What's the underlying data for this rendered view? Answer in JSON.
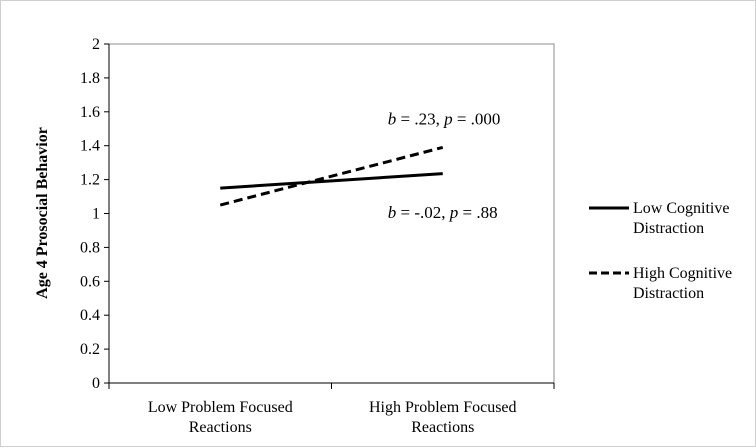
{
  "chart_data": {
    "type": "line",
    "title": "",
    "xlabel": "",
    "ylabel": "Age 4 Prosocial Behavior",
    "ylim": [
      0,
      2
    ],
    "yticks": [
      "0",
      "0.2",
      "0.4",
      "0.6",
      "0.8",
      "1",
      "1.2",
      "1.4",
      "1.6",
      "1.8",
      "2"
    ],
    "categories": [
      [
        "Low Problem Focused",
        "Reactions"
      ],
      [
        "High Problem Focused",
        "Reactions"
      ]
    ],
    "series": [
      {
        "name_lines": [
          "Low Cognitive",
          "Distraction"
        ],
        "style": "solid",
        "values": [
          1.15,
          1.235
        ]
      },
      {
        "name_lines": [
          "High Cognitive",
          "Distraction"
        ],
        "style": "dashed",
        "values": [
          1.05,
          1.39
        ]
      }
    ],
    "annotations": [
      {
        "b_label": "b",
        "b_text": " = .23, ",
        "p_label": "p",
        "p_text": " = .000",
        "x": 0.92,
        "y": 1.56
      },
      {
        "b_label": "b",
        "b_text": " = -.02, ",
        "p_label": "p",
        "p_text": " = .88",
        "x": 0.92,
        "y": 1.01
      }
    ],
    "legend_position": "right",
    "grid": false
  }
}
